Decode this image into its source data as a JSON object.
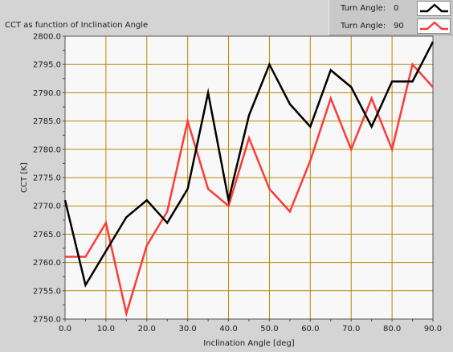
{
  "chart_data": {
    "type": "line",
    "title": "CCT as function of Inclination Angle",
    "xlabel": "Inclination Angle [deg]",
    "ylabel": "CCT [K]",
    "xlim": [
      0,
      90
    ],
    "ylim": [
      2750,
      2800
    ],
    "x_ticks": [
      "0.0",
      "10.0",
      "20.0",
      "30.0",
      "40.0",
      "50.0",
      "60.0",
      "70.0",
      "80.0",
      "90.0"
    ],
    "y_ticks": [
      "2750.0",
      "2755.0",
      "2760.0",
      "2765.0",
      "2770.0",
      "2775.0",
      "2780.0",
      "2785.0",
      "2790.0",
      "2795.0",
      "2800.0"
    ],
    "grid": true,
    "legend_position": "top-right",
    "legend_label": "Turn Angle:",
    "x": [
      0,
      5,
      10,
      15,
      20,
      25,
      30,
      35,
      40,
      45,
      50,
      55,
      60,
      65,
      70,
      75,
      80,
      85,
      90
    ],
    "series": [
      {
        "name": "0",
        "color": "#000000",
        "values": [
          2771,
          2756,
          2762,
          2768,
          2771,
          2767,
          2773,
          2790,
          2771,
          2786,
          2795,
          2788,
          2784,
          2794,
          2791,
          2784,
          2792,
          2792,
          2799
        ]
      },
      {
        "name": "90",
        "color": "#ff3b3b",
        "values": [
          2761,
          2761,
          2767,
          2751,
          2763,
          2769,
          2785,
          2773,
          2770,
          2782,
          2773,
          2769,
          2778,
          2789,
          2780,
          2789,
          2780,
          2795,
          2791
        ]
      }
    ],
    "plot_background": "#f8f8f8",
    "grid_color": "#b8860b"
  }
}
